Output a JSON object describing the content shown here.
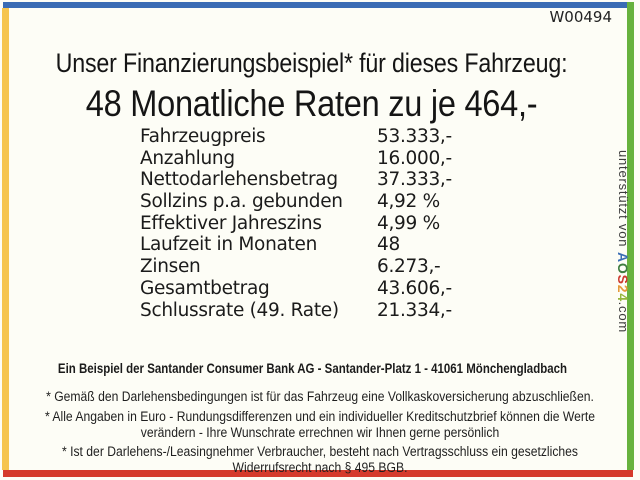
{
  "page": {
    "ref_code": "W00494",
    "title_line1": "Unser Finanzierungsbeispiel* für dieses Fahrzeug:",
    "title_line2": "48 Monatliche Raten zu je 464,-"
  },
  "finance_table": {
    "rows": [
      {
        "label": "Fahrzeugpreis",
        "value": "53.333,-"
      },
      {
        "label": "Anzahlung",
        "value": "16.000,-"
      },
      {
        "label": "Nettodarlehensbetrag",
        "value": "37.333,-"
      },
      {
        "label": "Sollzins p.a. gebunden",
        "value": "4,92 %"
      },
      {
        "label": "Effektiver Jahreszins",
        "value": "4,99 %"
      },
      {
        "label": "Laufzeit in Monaten",
        "value": "48"
      },
      {
        "label": "Zinsen",
        "value": "6.273,-"
      },
      {
        "label": "Gesamtbetrag",
        "value": "43.606,-"
      },
      {
        "label": "Schlussrate (49. Rate)",
        "value": "21.334,-"
      }
    ]
  },
  "footer": {
    "bank_line": "Ein Beispiel der Santander Consumer Bank AG - Santander-Platz 1 - 41061 Mönchengladbach",
    "notes": [
      "* Gemäß den Darlehensbedingungen ist für das Fahrzeug eine Vollkaskoversicherung abzuschließen.",
      "* Alle Angaben in Euro - Rundungsdifferenzen und ein individueller Kreditschutzbrief können die Werte verändern - Ihre Wunschrate errechnen wir Ihnen gerne persönlich",
      "* Ist der Darlehens-/Leasingnehmer Verbraucher, besteht nach Vertragsschluss ein gesetzliches Widerrufsrecht nach § 495 BGB."
    ]
  },
  "watermark": {
    "prefix": "unterstützt von ",
    "logo_letters": [
      {
        "char": "A",
        "color": "#3b6eb5"
      },
      {
        "char": "O",
        "color": "#3f7d3f"
      },
      {
        "char": "S",
        "color": "#cc3a2e"
      },
      {
        "char": "2",
        "color": "#e59a3c"
      },
      {
        "char": "4",
        "color": "#96b63c"
      }
    ],
    "suffix": ".com"
  },
  "frame_colors": {
    "top": "#3a6cb4",
    "left": "#f6c54f",
    "right": "#67b23e",
    "bottom": "#d53a2c"
  }
}
